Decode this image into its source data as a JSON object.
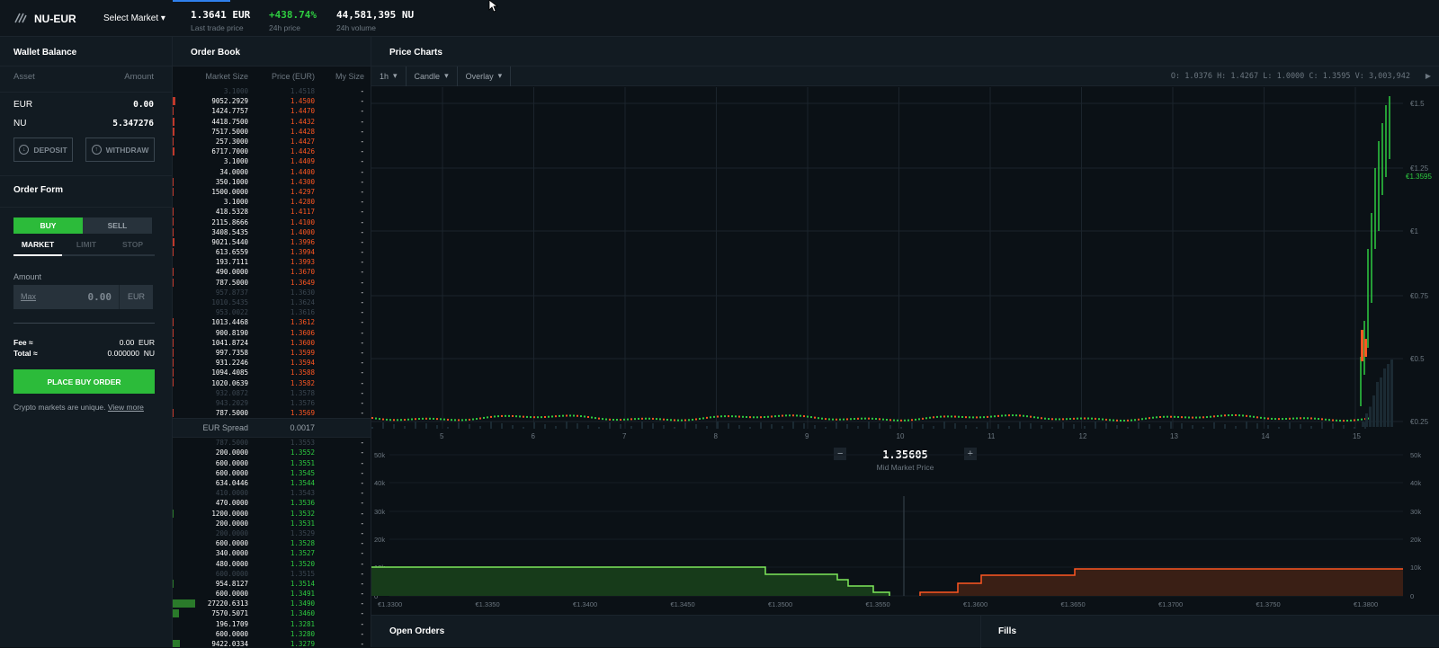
{
  "header": {
    "market": "NU-EUR",
    "select_market": "Select Market",
    "last_trade_price": "1.3641 EUR",
    "last_trade_label": "Last trade price",
    "price_change": "+438.74%",
    "price_change_label": "24h price",
    "volume": "44,581,395 NU",
    "volume_label": "24h volume"
  },
  "wallet": {
    "title": "Wallet Balance",
    "asset_col": "Asset",
    "amount_col": "Amount",
    "rows": [
      {
        "asset": "EUR",
        "amount": "0.00"
      },
      {
        "asset": "NU",
        "amount": "5.347276"
      }
    ],
    "deposit": "DEPOSIT",
    "withdraw": "WITHDRAW"
  },
  "order_form": {
    "title": "Order Form",
    "buy": "BUY",
    "sell": "SELL",
    "tabs": [
      "MARKET",
      "LIMIT",
      "STOP"
    ],
    "amount_label": "Amount",
    "max": "Max",
    "amount_value": "0.00",
    "currency": "EUR",
    "fee_label": "Fee ≈",
    "fee_value": "0.00",
    "fee_cur": "EUR",
    "total_label": "Total ≈",
    "total_value": "0.000000",
    "total_cur": "NU",
    "place_order": "PLACE BUY ORDER",
    "note": "Crypto markets are unique.",
    "note_link": "View more"
  },
  "order_book": {
    "title": "Order Book",
    "col_size": "Market Size",
    "col_price": "Price (EUR)",
    "col_mysize": "My Size",
    "spread_label": "EUR Spread",
    "spread_value": "0.0017",
    "asks": [
      {
        "size": "3.1000",
        "price": "1.4518",
        "dim": true,
        "depth": 0
      },
      {
        "size": "9052.2929",
        "price": "1.4500",
        "depth": 3
      },
      {
        "size": "1424.7757",
        "price": "1.4470",
        "depth": 1
      },
      {
        "size": "4418.7500",
        "price": "1.4432",
        "depth": 2
      },
      {
        "size": "7517.5000",
        "price": "1.4428",
        "depth": 2
      },
      {
        "size": "257.3000",
        "price": "1.4427",
        "depth": 1
      },
      {
        "size": "6717.7000",
        "price": "1.4426",
        "depth": 2
      },
      {
        "size": "3.1000",
        "price": "1.4409",
        "depth": 0
      },
      {
        "size": "34.0000",
        "price": "1.4400",
        "depth": 0
      },
      {
        "size": "350.1000",
        "price": "1.4300",
        "depth": 1
      },
      {
        "size": "1500.0000",
        "price": "1.4297",
        "depth": 1
      },
      {
        "size": "3.1000",
        "price": "1.4280",
        "depth": 0
      },
      {
        "size": "418.5328",
        "price": "1.4117",
        "depth": 1
      },
      {
        "size": "2115.8666",
        "price": "1.4100",
        "depth": 1
      },
      {
        "size": "3408.5435",
        "price": "1.4000",
        "depth": 1
      },
      {
        "size": "9021.5440",
        "price": "1.3996",
        "depth": 2
      },
      {
        "size": "613.6559",
        "price": "1.3994",
        "depth": 1
      },
      {
        "size": "193.7111",
        "price": "1.3993",
        "depth": 0
      },
      {
        "size": "490.0000",
        "price": "1.3670",
        "depth": 1
      },
      {
        "size": "787.5000",
        "price": "1.3649",
        "depth": 1
      },
      {
        "size": "957.8737",
        "price": "1.3630",
        "dim": true,
        "depth": 0
      },
      {
        "size": "1010.5435",
        "price": "1.3624",
        "dim": true,
        "depth": 0
      },
      {
        "size": "953.0022",
        "price": "1.3616",
        "dim": true,
        "depth": 0
      },
      {
        "size": "1013.4468",
        "price": "1.3612",
        "depth": 1
      },
      {
        "size": "900.8190",
        "price": "1.3606",
        "depth": 1
      },
      {
        "size": "1041.8724",
        "price": "1.3600",
        "depth": 1
      },
      {
        "size": "997.7358",
        "price": "1.3599",
        "depth": 1
      },
      {
        "size": "931.2246",
        "price": "1.3594",
        "depth": 1
      },
      {
        "size": "1094.4085",
        "price": "1.3588",
        "depth": 1
      },
      {
        "size": "1020.0639",
        "price": "1.3582",
        "depth": 1
      },
      {
        "size": "932.0872",
        "price": "1.3578",
        "dim": true,
        "depth": 0
      },
      {
        "size": "943.2029",
        "price": "1.3576",
        "dim": true,
        "depth": 0
      },
      {
        "size": "787.5000",
        "price": "1.3569",
        "depth": 1
      }
    ],
    "bids": [
      {
        "size": "787.5000",
        "price": "1.3553",
        "dim": true,
        "depth": 0
      },
      {
        "size": "200.0000",
        "price": "1.3552",
        "depth": 0
      },
      {
        "size": "600.0000",
        "price": "1.3551",
        "depth": 0
      },
      {
        "size": "600.0000",
        "price": "1.3545",
        "depth": 0
      },
      {
        "size": "634.0446",
        "price": "1.3544",
        "depth": 0
      },
      {
        "size": "410.0000",
        "price": "1.3543",
        "dim": true,
        "depth": 0
      },
      {
        "size": "470.0000",
        "price": "1.3536",
        "depth": 0
      },
      {
        "size": "1200.0000",
        "price": "1.3532",
        "depth": 1
      },
      {
        "size": "200.0000",
        "price": "1.3531",
        "depth": 0
      },
      {
        "size": "200.0000",
        "price": "1.3529",
        "dim": true,
        "depth": 0
      },
      {
        "size": "600.0000",
        "price": "1.3528",
        "depth": 0
      },
      {
        "size": "340.0000",
        "price": "1.3527",
        "depth": 0
      },
      {
        "size": "480.0000",
        "price": "1.3520",
        "depth": 0
      },
      {
        "size": "600.0000",
        "price": "1.3515",
        "dim": true,
        "depth": 0
      },
      {
        "size": "954.8127",
        "price": "1.3514",
        "depth": 1
      },
      {
        "size": "600.0000",
        "price": "1.3491",
        "depth": 0
      },
      {
        "size": "27220.6313",
        "price": "1.3490",
        "depth": 25
      },
      {
        "size": "7570.5071",
        "price": "1.3460",
        "depth": 7
      },
      {
        "size": "196.1709",
        "price": "1.3281",
        "depth": 0
      },
      {
        "size": "600.0000",
        "price": "1.3280",
        "depth": 0
      },
      {
        "size": "9422.0334",
        "price": "1.3279",
        "depth": 8
      }
    ],
    "my_size": "-"
  },
  "charts": {
    "title": "Price Charts",
    "interval": "1h",
    "type": "Candle",
    "overlay": "Overlay",
    "ohlc": "O: 1.0376   H: 1.4267   L: 1.0000   C: 1.3595   V: 3,003,942",
    "current_price_tag": "€1.3595",
    "y_ticks": [
      "€1.5",
      "€1.25",
      "€1",
      "€0.75",
      "€0.5",
      "€0.25"
    ],
    "x_ticks": [
      "5",
      "6",
      "7",
      "8",
      "9",
      "10",
      "11",
      "12",
      "13",
      "14",
      "15"
    ],
    "mid_price": "1.35605",
    "mid_label": "Mid Market Price",
    "depth_y_ticks": [
      "50k",
      "40k",
      "30k",
      "20k",
      "10k",
      "0"
    ],
    "depth_x_ticks": [
      "€1.3300",
      "€1.3350",
      "€1.3400",
      "€1.3450",
      "€1.3500",
      "€1.3550",
      "€1.3600",
      "€1.3650",
      "€1.3700",
      "€1.3750",
      "€1.3800"
    ]
  },
  "panels": {
    "open_orders": "Open Orders",
    "fills": "Fills"
  },
  "colors": {
    "buy": "#2cbb3a",
    "sell": "#ff5722",
    "background": "#0b1116",
    "panel": "#121b22"
  }
}
